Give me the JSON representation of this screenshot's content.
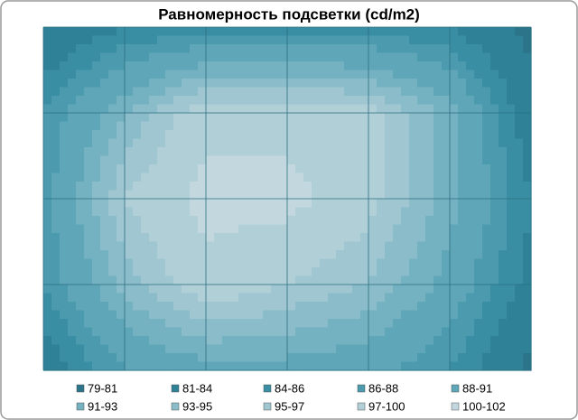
{
  "chart_data": {
    "type": "contour",
    "title": "Равномерность подсветки (cd/m2)",
    "z": [
      [
        81,
        84,
        85,
        85,
        85,
        84,
        80
      ],
      [
        86,
        93,
        99,
        99,
        98,
        92,
        82
      ],
      [
        87,
        97,
        101,
        101,
        98,
        92,
        84
      ],
      [
        86,
        94,
        99,
        97,
        95,
        90,
        83
      ],
      [
        82,
        88,
        90,
        90,
        89,
        86,
        80
      ]
    ],
    "bands": [
      {
        "name": "79-81",
        "color": "#2b7489"
      },
      {
        "name": "81-84",
        "color": "#2f8198"
      },
      {
        "name": "84-86",
        "color": "#3a8ea3"
      },
      {
        "name": "86-88",
        "color": "#4b9aae"
      },
      {
        "name": "88-91",
        "color": "#5fa6b8"
      },
      {
        "name": "91-93",
        "color": "#74b1c1"
      },
      {
        "name": "93-95",
        "color": "#8abcca"
      },
      {
        "name": "95-97",
        "color": "#9fc6d1"
      },
      {
        "name": "97-100",
        "color": "#b1cfd7"
      },
      {
        "name": "100-102",
        "color": "#c2d8de"
      }
    ],
    "grid": true
  }
}
